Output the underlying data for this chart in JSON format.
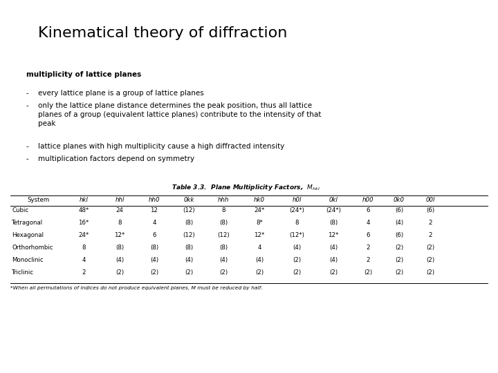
{
  "title": "Kinematical theory of diffraction",
  "subtitle": "multiplicity of lattice planes",
  "bullet_dashes": [
    "-",
    "-",
    "-",
    "-"
  ],
  "bullet_texts": [
    "every lattice plane is a group of lattice planes",
    "only the lattice plane distance determines the peak position, thus all lattice\nplanes of a group (equivalent lattice planes) contribute to the intensity of that\npeak",
    "lattice planes with high multiplicity cause a high diffracted intensity",
    "multiplication factors depend on symmetry"
  ],
  "table_title": "Table 3.3.  Plane Multiplicity Factors, ",
  "table_title_sub": "M",
  "table_title_subsub": "hkl",
  "table_headers": [
    "System",
    "hkl",
    "hhl",
    "hh0",
    "0kk",
    "hhh",
    "hk0",
    "h0l",
    "0kl",
    "h00",
    "0k0",
    "00l"
  ],
  "table_data": [
    [
      "Cubic",
      "48*",
      "24",
      "12",
      "(12)",
      "8",
      "24*",
      "(24*)",
      "(24*)",
      "6",
      "(6)",
      "(6)"
    ],
    [
      "Tetragonal",
      "16*",
      "8",
      "4",
      "(8)",
      "(8)",
      "8*",
      "8",
      "(8)",
      "4",
      "(4)",
      "2"
    ],
    [
      "Hexagonal",
      "24*",
      "12*",
      "6",
      "(12)",
      "(12)",
      "12*",
      "(12*)",
      "12*",
      "6",
      "(6)",
      "2"
    ],
    [
      "Orthorhombic",
      "8",
      "(8)",
      "(8)",
      "(8)",
      "(8)",
      "4",
      "(4)",
      "(4)",
      "2",
      "(2)",
      "(2)"
    ],
    [
      "Monoclinic",
      "4",
      "(4)",
      "(4)",
      "(4)",
      "(4)",
      "(4)",
      "(2)",
      "(4)",
      "2",
      "(2)",
      "(2)"
    ],
    [
      "Triclinic",
      "2",
      "(2)",
      "(2)",
      "(2)",
      "(2)",
      "(2)",
      "(2)",
      "(2)",
      "(2)",
      "(2)",
      "(2)"
    ]
  ],
  "footnote": "*When all permutations of indices do not produce equivalent planes, M must be reduced by half.",
  "bg_color": "#ffffff",
  "text_color": "#000000",
  "title_fontsize": 16,
  "subtitle_fontsize": 7.5,
  "bullet_fontsize": 7.5,
  "table_title_fontsize": 6.5,
  "table_fontsize": 6.2
}
